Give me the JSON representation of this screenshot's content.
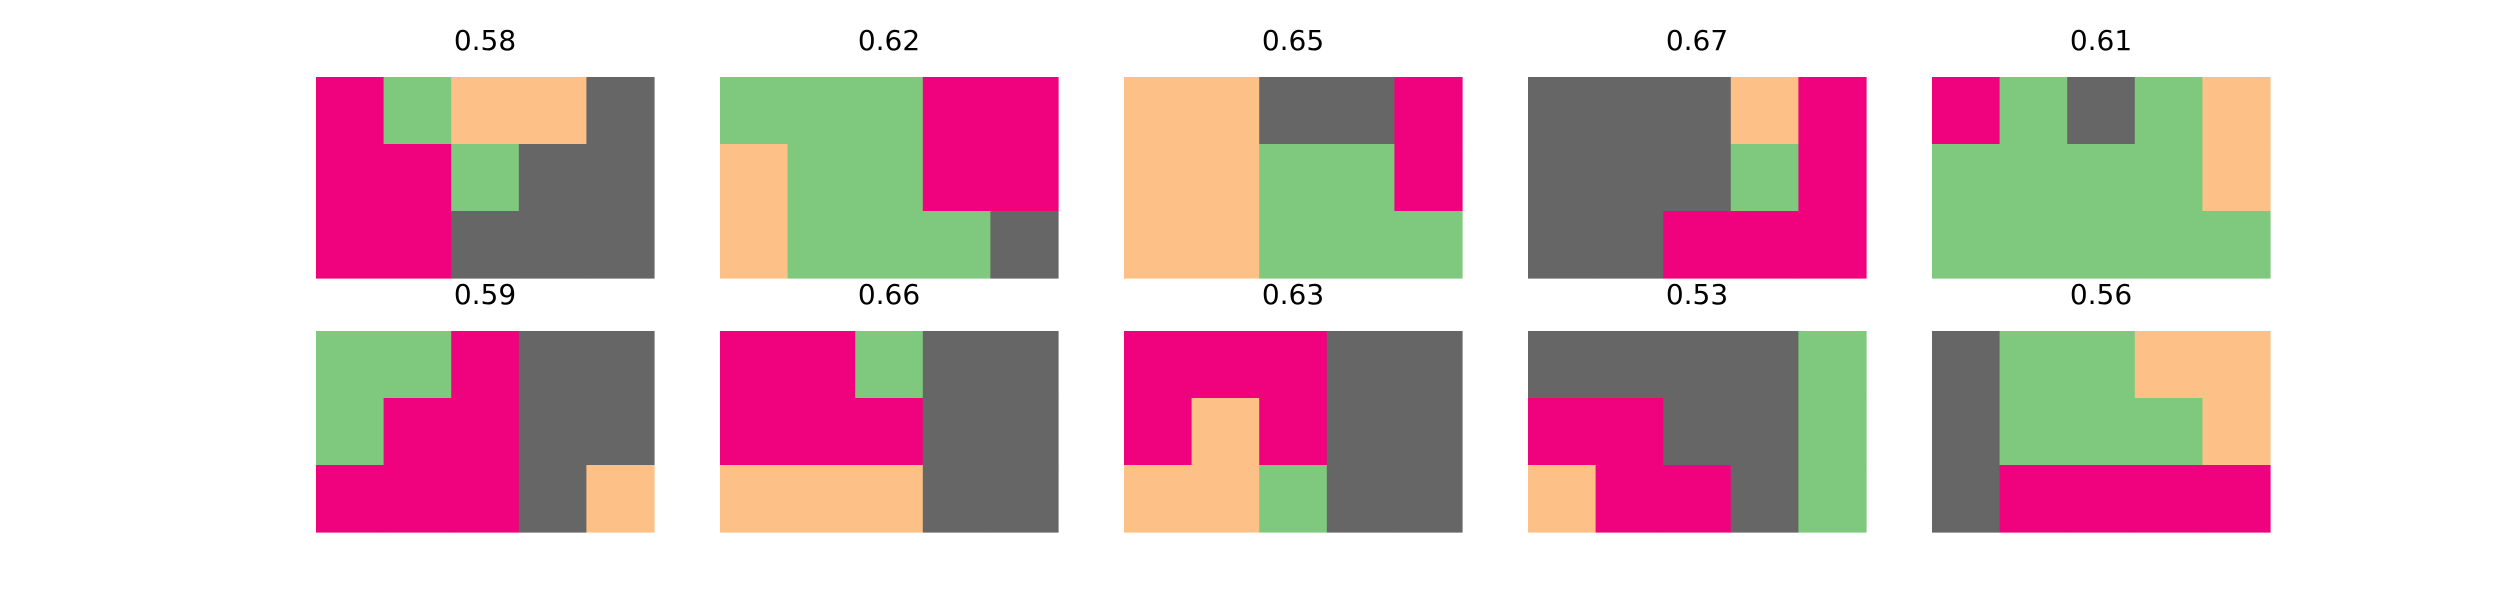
{
  "colors": {
    "0": "#666666",
    "1": "#7fc97f",
    "2": "#fdc086",
    "3": "#f0027f"
  },
  "chart_data": {
    "type": "heatmap",
    "grid_rows": 3,
    "grid_cols": 5,
    "panels": [
      {
        "title": "0.58",
        "grid": [
          [
            3,
            1,
            2,
            2,
            0
          ],
          [
            3,
            3,
            1,
            0,
            0
          ],
          [
            3,
            3,
            0,
            0,
            0
          ]
        ]
      },
      {
        "title": "0.62",
        "grid": [
          [
            1,
            1,
            1,
            3,
            3
          ],
          [
            2,
            1,
            1,
            3,
            3
          ],
          [
            2,
            1,
            1,
            1,
            0
          ]
        ]
      },
      {
        "title": "0.65",
        "grid": [
          [
            2,
            2,
            0,
            0,
            3
          ],
          [
            2,
            2,
            1,
            1,
            3
          ],
          [
            2,
            2,
            1,
            1,
            1
          ]
        ]
      },
      {
        "title": "0.67",
        "grid": [
          [
            0,
            0,
            0,
            2,
            3
          ],
          [
            0,
            0,
            0,
            1,
            3
          ],
          [
            0,
            0,
            3,
            3,
            3
          ]
        ]
      },
      {
        "title": "0.61",
        "grid": [
          [
            3,
            1,
            0,
            1,
            2
          ],
          [
            1,
            1,
            1,
            1,
            2
          ],
          [
            1,
            1,
            1,
            1,
            1
          ]
        ]
      },
      {
        "title": "0.59",
        "grid": [
          [
            1,
            1,
            3,
            0,
            0
          ],
          [
            1,
            3,
            3,
            0,
            0
          ],
          [
            3,
            3,
            3,
            0,
            2
          ]
        ]
      },
      {
        "title": "0.66",
        "grid": [
          [
            3,
            3,
            1,
            0,
            0
          ],
          [
            3,
            3,
            3,
            0,
            0
          ],
          [
            2,
            2,
            2,
            0,
            0
          ]
        ]
      },
      {
        "title": "0.63",
        "grid": [
          [
            3,
            3,
            3,
            0,
            0
          ],
          [
            3,
            2,
            3,
            0,
            0
          ],
          [
            2,
            2,
            1,
            0,
            0
          ]
        ]
      },
      {
        "title": "0.53",
        "grid": [
          [
            0,
            0,
            0,
            0,
            1
          ],
          [
            3,
            3,
            0,
            0,
            1
          ],
          [
            2,
            3,
            3,
            0,
            1
          ]
        ]
      },
      {
        "title": "0.56",
        "grid": [
          [
            0,
            1,
            1,
            2,
            2
          ],
          [
            0,
            1,
            1,
            1,
            2
          ],
          [
            0,
            3,
            3,
            3,
            3
          ]
        ]
      }
    ]
  }
}
